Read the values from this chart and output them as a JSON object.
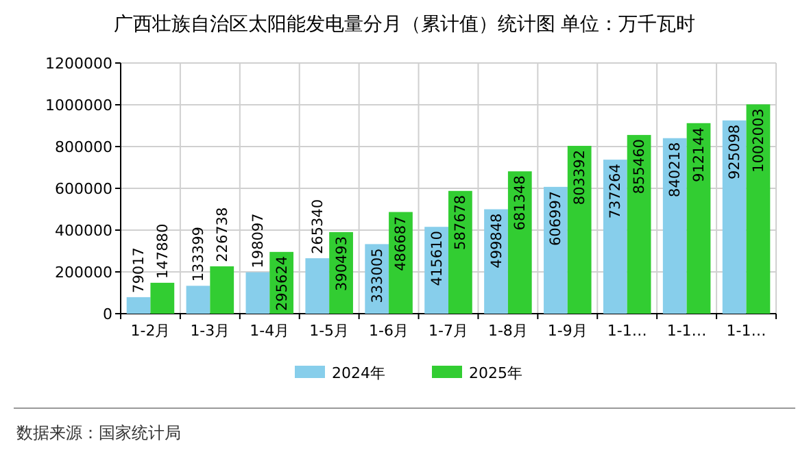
{
  "chart_data": {
    "type": "bar",
    "title": "广西壮族自治区太阳能发电量分月（累计值）统计图 单位：万千瓦时",
    "categories": [
      "1-2月",
      "1-3月",
      "1-4月",
      "1-5月",
      "1-6月",
      "1-7月",
      "1-8月",
      "1-9月",
      "1-1…",
      "1-1…",
      "1-1…"
    ],
    "series": [
      {
        "name": "2024年",
        "color": "#87ceeb",
        "values": [
          79017,
          133399,
          198097,
          265340,
          333005,
          415610,
          499848,
          606997,
          737264,
          840218,
          925098
        ]
      },
      {
        "name": "2025年",
        "color": "#32cd32",
        "values": [
          147880,
          226738,
          295624,
          390493,
          486687,
          587678,
          681348,
          803392,
          855460,
          912144,
          1002003
        ]
      }
    ],
    "ylim": [
      0,
      1200000
    ],
    "yticks": [
      0,
      200000,
      400000,
      600000,
      800000,
      1000000,
      1200000
    ],
    "grid": true,
    "legend": "bottom",
    "data_labels": true,
    "annotations": [
      "数据来源：国家统计局"
    ]
  }
}
